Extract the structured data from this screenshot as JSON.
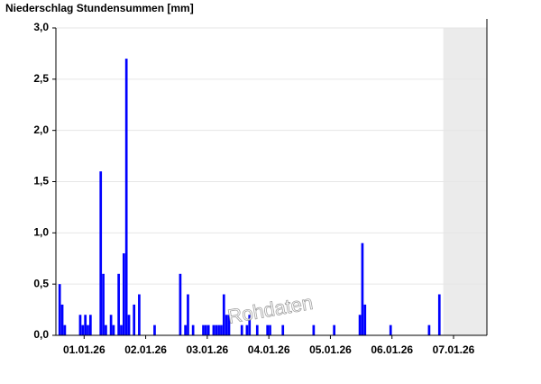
{
  "chart_data": {
    "type": "bar",
    "title": "Niederschlag Stundensummen [mm]",
    "watermark": "Rohdaten",
    "x": [
      1,
      2,
      3,
      9,
      10,
      11,
      12,
      13,
      17,
      18,
      19,
      21,
      22,
      24,
      25,
      26,
      27,
      28,
      30,
      32,
      38,
      48,
      50,
      51,
      53,
      57,
      58,
      59,
      61,
      62,
      63,
      64,
      65,
      66,
      67,
      72,
      74,
      75,
      78,
      82,
      83,
      88,
      100,
      108,
      118,
      119,
      120,
      130,
      145,
      149
    ],
    "values": [
      0.5,
      0.3,
      0.1,
      0.2,
      0.1,
      0.2,
      0.1,
      0.2,
      1.6,
      0.6,
      0.1,
      0.2,
      0.1,
      0.6,
      0.1,
      0.8,
      2.7,
      0.2,
      0.3,
      0.4,
      0.1,
      0.6,
      0.1,
      0.4,
      0.1,
      0.1,
      0.1,
      0.1,
      0.1,
      0.1,
      0.1,
      0.1,
      0.4,
      0.2,
      0.2,
      0.1,
      0.1,
      0.2,
      0.1,
      0.1,
      0.1,
      0.1,
      0.1,
      0.1,
      0.2,
      0.9,
      0.3,
      0.1,
      0.1,
      0.4
    ],
    "color": "#0000ff",
    "xlim": [
      0,
      168
    ],
    "xticks": [
      {
        "value": 11,
        "label": "01.01.26"
      },
      {
        "value": 35,
        "label": "02.01.26"
      },
      {
        "value": 59,
        "label": "03.01.26"
      },
      {
        "value": 83,
        "label": "04.01.26"
      },
      {
        "value": 107,
        "label": "05.01.26"
      },
      {
        "value": 131,
        "label": "06.01.26"
      },
      {
        "value": 155,
        "label": "07.01.26"
      }
    ],
    "ylim": [
      0,
      3
    ],
    "yticks": [
      {
        "value": 0,
        "label": "0,0"
      },
      {
        "value": 0.5,
        "label": "0,5"
      },
      {
        "value": 1,
        "label": "1,0"
      },
      {
        "value": 1.5,
        "label": "1,5"
      },
      {
        "value": 2,
        "label": "2,0"
      },
      {
        "value": 2.5,
        "label": "2,5"
      },
      {
        "value": 3,
        "label": "3,0"
      }
    ],
    "shaded_xlim": [
      151,
      168
    ],
    "grid": true
  }
}
